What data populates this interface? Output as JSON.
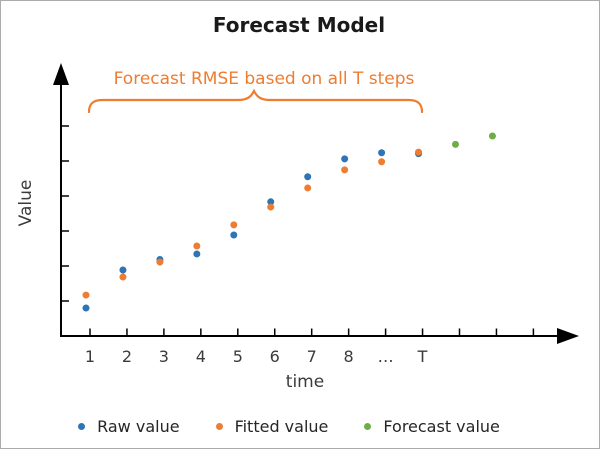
{
  "frame": {
    "background": "#ffffff",
    "border_color": "#ababab"
  },
  "colors": {
    "raw_blue": "#2E75B6",
    "fitted_orange": "#ED7D31",
    "forecast_green": "#70AD47",
    "annotation_orange": "#ED7D31",
    "axis_black": "#000000",
    "label_gray": "#3B3B3B",
    "title_black": "#1A1A1A"
  },
  "chart_data": {
    "type": "scatter",
    "title": "Forecast Model",
    "xlabel": "time",
    "ylabel": "Value",
    "annotation": "Forecast RMSE based on all T steps",
    "annotation_brace_span_steps": [
      1,
      10
    ],
    "x_tick_labels": [
      "1",
      "2",
      "3",
      "4",
      "5",
      "6",
      "7",
      "8",
      "…",
      "T",
      "",
      "",
      ""
    ],
    "y_tick_count": 6,
    "y_axis_values_hidden": true,
    "value_scale": [
      0,
      100
    ],
    "grid": false,
    "legend_position": "bottom",
    "series": [
      {
        "name": "Raw value",
        "color": "#2E75B6",
        "marker": "dot",
        "steps": [
          1,
          2,
          3,
          4,
          5,
          6,
          7,
          8,
          9,
          10
        ],
        "values": [
          12.7,
          30.0,
          34.8,
          37.3,
          45.9,
          61.0,
          72.4,
          80.5,
          83.3,
          82.9
        ]
      },
      {
        "name": "Fitted value",
        "color": "#ED7D31",
        "marker": "dot",
        "steps": [
          1,
          2,
          3,
          4,
          5,
          6,
          7,
          8,
          9,
          10
        ],
        "values": [
          18.6,
          26.8,
          33.6,
          40.9,
          50.5,
          58.6,
          67.3,
          75.5,
          79.2,
          83.6
        ]
      },
      {
        "name": "Forecast value",
        "color": "#70AD47",
        "marker": "dot",
        "steps": [
          11,
          12
        ],
        "values": [
          87.1,
          90.9
        ]
      }
    ]
  }
}
